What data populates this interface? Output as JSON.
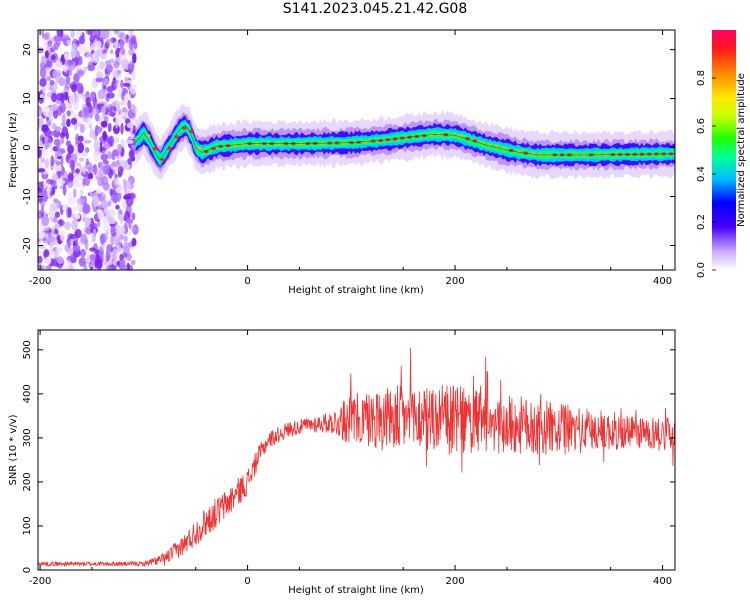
{
  "title": "S141.2023.045.21.42.G08",
  "chart_data": [
    {
      "type": "heatmap",
      "xlabel": "Height of straight line (km)",
      "ylabel": "Frequency (Hz)",
      "xlim": [
        -202,
        412
      ],
      "ylim": [
        -25,
        24
      ],
      "xticks": [
        -200,
        0,
        200,
        400
      ],
      "yticks": [
        -20,
        -10,
        0,
        10,
        20
      ],
      "noise_region_km": [
        -202,
        -108
      ],
      "ridge_x_km": [
        -108,
        -100,
        -95,
        -88,
        -84,
        -78,
        -72,
        -66,
        -60,
        -55,
        -50,
        -44,
        -38,
        -30,
        0,
        50,
        100,
        130,
        150,
        180,
        200,
        215,
        230,
        250,
        262,
        280,
        330,
        400,
        412
      ],
      "ridge_freq_hz": [
        1.0,
        3.0,
        1.5,
        -1.5,
        -2.5,
        -0.5,
        1.5,
        3.5,
        4.5,
        3.0,
        0.0,
        -1.0,
        -0.5,
        0.2,
        0.8,
        0.8,
        1.0,
        1.5,
        2.0,
        2.7,
        2.5,
        1.5,
        0.5,
        -0.5,
        -1.0,
        -1.5,
        -1.5,
        -1.3,
        -1.3
      ],
      "colorbar": {
        "label": "Normalized spectral amplitude",
        "ticks": [
          "0.0",
          "0.2",
          "0.4",
          "0.6",
          "0.8"
        ],
        "range": [
          0.0,
          1.0
        ]
      }
    },
    {
      "type": "line",
      "xlabel": "Height of straight line (km)",
      "ylabel": "SNR (10 * v/v)",
      "xlim": [
        -202,
        412
      ],
      "ylim": [
        0,
        545
      ],
      "xticks": [
        -200,
        0,
        200,
        400
      ],
      "yticks": [
        0,
        100,
        200,
        300,
        400,
        500
      ],
      "color": "#ee3333",
      "trend_x_km": [
        -202,
        -100,
        -80,
        -60,
        -40,
        -20,
        0,
        10,
        20,
        40,
        60,
        80,
        100,
        150,
        200,
        250,
        300,
        350,
        412
      ],
      "trend_snr": [
        14,
        14,
        25,
        60,
        110,
        150,
        200,
        255,
        295,
        320,
        330,
        335,
        340,
        345,
        340,
        330,
        320,
        315,
        310
      ],
      "noise_amplitude": [
        5,
        5,
        15,
        25,
        35,
        35,
        30,
        25,
        20,
        18,
        18,
        25,
        60,
        80,
        80,
        70,
        60,
        45,
        35
      ]
    }
  ]
}
